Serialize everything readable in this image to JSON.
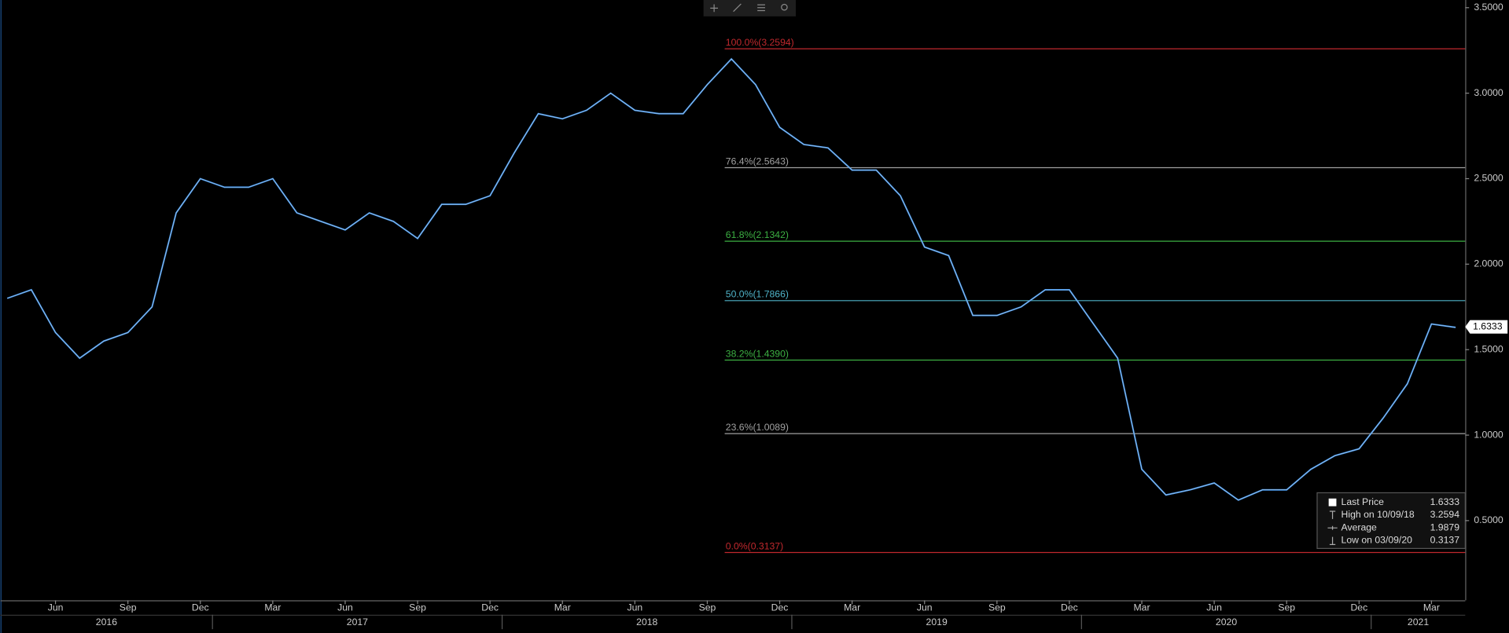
{
  "chart_data": {
    "type": "line",
    "categories": [
      "2016-04",
      "2016-05",
      "2016-06",
      "2016-07",
      "2016-08",
      "2016-09",
      "2016-10",
      "2016-11",
      "2016-12",
      "2017-01",
      "2017-02",
      "2017-03",
      "2017-04",
      "2017-05",
      "2017-06",
      "2017-07",
      "2017-08",
      "2017-09",
      "2017-10",
      "2017-11",
      "2017-12",
      "2018-01",
      "2018-02",
      "2018-03",
      "2018-04",
      "2018-05",
      "2018-06",
      "2018-07",
      "2018-08",
      "2018-09",
      "2018-10",
      "2018-11",
      "2018-12",
      "2019-01",
      "2019-02",
      "2019-03",
      "2019-04",
      "2019-05",
      "2019-06",
      "2019-07",
      "2019-08",
      "2019-09",
      "2019-10",
      "2019-11",
      "2019-12",
      "2020-01",
      "2020-02",
      "2020-03",
      "2020-04",
      "2020-05",
      "2020-06",
      "2020-07",
      "2020-08",
      "2020-09",
      "2020-10",
      "2020-11",
      "2020-12",
      "2021-01",
      "2021-02",
      "2021-03",
      "2021-04"
    ],
    "series": [
      {
        "name": "Last Price",
        "color": "#3d8de0",
        "values": [
          1.8,
          1.85,
          1.6,
          1.45,
          1.55,
          1.6,
          1.75,
          2.3,
          2.5,
          2.45,
          2.45,
          2.5,
          2.3,
          2.25,
          2.2,
          2.3,
          2.25,
          2.15,
          2.35,
          2.35,
          2.4,
          2.65,
          2.88,
          2.85,
          2.9,
          3.0,
          2.9,
          2.88,
          2.88,
          3.05,
          3.2,
          3.05,
          2.8,
          2.7,
          2.68,
          2.55,
          2.55,
          2.4,
          2.1,
          2.05,
          1.7,
          1.7,
          1.75,
          1.85,
          1.85,
          1.65,
          1.45,
          0.8,
          0.65,
          0.68,
          0.72,
          0.62,
          0.68,
          0.68,
          0.8,
          0.88,
          0.92,
          1.1,
          1.3,
          1.65,
          1.63
        ]
      }
    ],
    "xticks": [
      {
        "value": "2016-06",
        "label": "Jun"
      },
      {
        "value": "2016-09",
        "label": "Sep"
      },
      {
        "value": "2016-12",
        "label": "Dec"
      },
      {
        "value": "2017-03",
        "label": "Mar"
      },
      {
        "value": "2017-06",
        "label": "Jun"
      },
      {
        "value": "2017-09",
        "label": "Sep"
      },
      {
        "value": "2017-12",
        "label": "Dec"
      },
      {
        "value": "2018-03",
        "label": "Mar"
      },
      {
        "value": "2018-06",
        "label": "Jun"
      },
      {
        "value": "2018-09",
        "label": "Sep"
      },
      {
        "value": "2018-12",
        "label": "Dec"
      },
      {
        "value": "2019-03",
        "label": "Mar"
      },
      {
        "value": "2019-06",
        "label": "Jun"
      },
      {
        "value": "2019-09",
        "label": "Sep"
      },
      {
        "value": "2019-12",
        "label": "Dec"
      },
      {
        "value": "2020-03",
        "label": "Mar"
      },
      {
        "value": "2020-06",
        "label": "Jun"
      },
      {
        "value": "2020-09",
        "label": "Sep"
      },
      {
        "value": "2020-12",
        "label": "Dec"
      },
      {
        "value": "2021-03",
        "label": "Mar"
      }
    ],
    "years": [
      "2016",
      "2017",
      "2018",
      "2019",
      "2020",
      "2021"
    ],
    "ylim": [
      0,
      3.5
    ],
    "yticks": [
      {
        "value": 0.5,
        "label": "0.5000"
      },
      {
        "value": 1,
        "label": "1.0000"
      },
      {
        "value": 1.5,
        "label": "1.5000"
      },
      {
        "value": 2,
        "label": "2.0000"
      },
      {
        "value": 2.5,
        "label": "2.5000"
      },
      {
        "value": 3,
        "label": "3.0000"
      },
      {
        "value": 3.5,
        "label": "3.5000"
      }
    ],
    "fib_levels": [
      {
        "label": "100.0%(3.2594)",
        "value": 3.2594,
        "color": "#c0282d"
      },
      {
        "label": "76.4%(2.5643)",
        "value": 2.5643,
        "color": "#a0a0a0"
      },
      {
        "label": "61.8%(2.1342)",
        "value": 2.1342,
        "color": "#3cb043"
      },
      {
        "label": "50.0%(1.7866)",
        "value": 1.7866,
        "color": "#4fb3c8"
      },
      {
        "label": "38.2%(1.4390)",
        "value": 1.439,
        "color": "#3cb043"
      },
      {
        "label": "23.6%(1.0089)",
        "value": 1.0089,
        "color": "#a0a0a0"
      },
      {
        "label": "0.0%(0.3137)",
        "value": 0.3137,
        "color": "#c0282d"
      }
    ],
    "last_price": 1.6333,
    "stats": [
      {
        "label": "Last Price",
        "value": 1.6333
      },
      {
        "label": "High on 10/09/18",
        "value": 3.2594
      },
      {
        "label": "Average",
        "value": 1.9879
      },
      {
        "label": "Low on 03/09/20",
        "value": 0.3137
      }
    ]
  }
}
